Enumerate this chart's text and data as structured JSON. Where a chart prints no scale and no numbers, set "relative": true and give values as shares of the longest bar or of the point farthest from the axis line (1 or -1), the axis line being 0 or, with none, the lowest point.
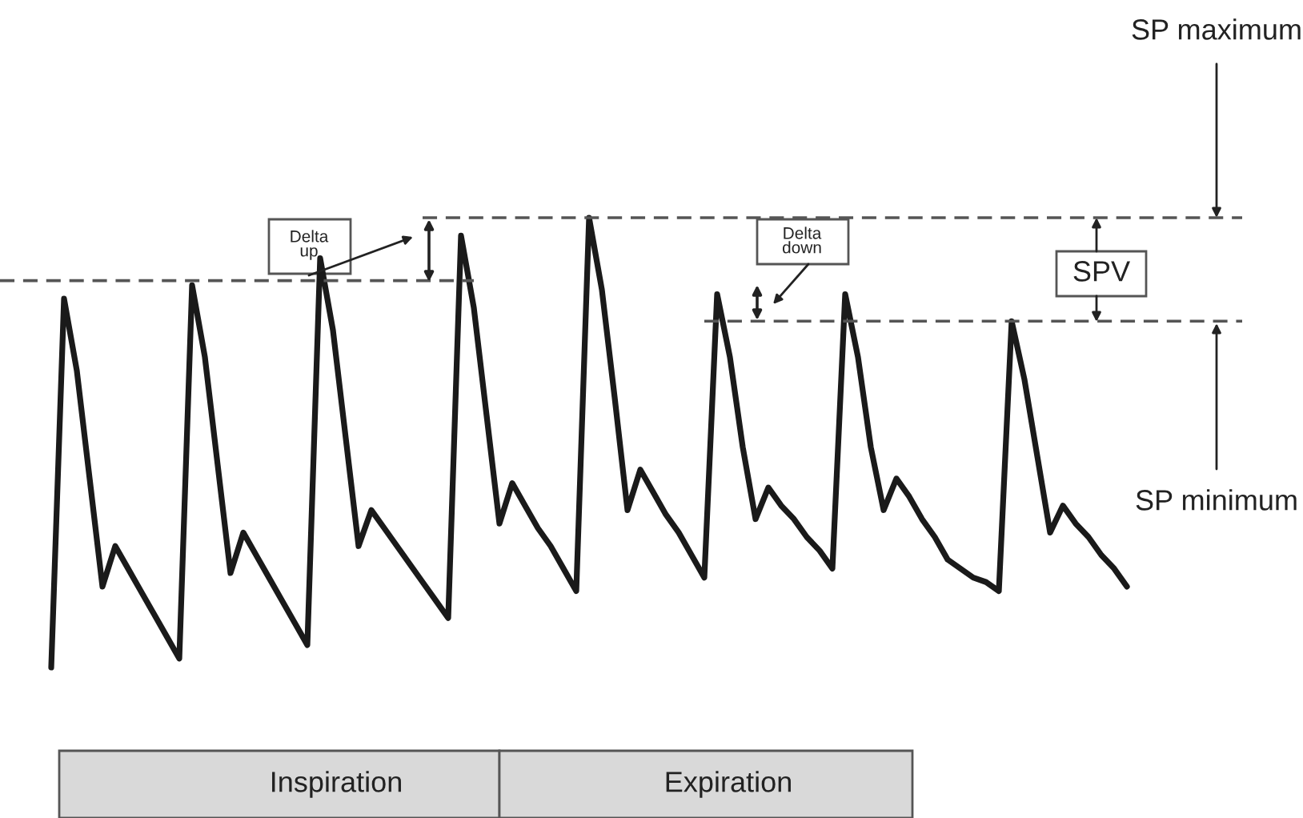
{
  "chart_data": {
    "type": "line",
    "relative": true,
    "categories": [
      null,
      null,
      null,
      null,
      null,
      null,
      null,
      null,
      null,
      null,
      null,
      null,
      null,
      null,
      null,
      null,
      null,
      null,
      null,
      null,
      null,
      null,
      null,
      null,
      null,
      null,
      null,
      null,
      null,
      null,
      null,
      null,
      null,
      null,
      null,
      null,
      null,
      null,
      null,
      null,
      null,
      null,
      null,
      null,
      null,
      null,
      null,
      null,
      null,
      null,
      null,
      null,
      null,
      null,
      null,
      null,
      null,
      null,
      null,
      null,
      null,
      null,
      null,
      null,
      null,
      null,
      null,
      null,
      null,
      null,
      null,
      null,
      null,
      null,
      null,
      null,
      null,
      null,
      null,
      null,
      null,
      null,
      null,
      null,
      null,
      null,
      null,
      null,
      null,
      null,
      null,
      null,
      null,
      null,
      null,
      null,
      null,
      null
    ],
    "series": [
      {
        "color": "#1a1a1a",
        "line_style": "solid",
        "values": [
          null,
          null,
          null,
          null,
          0,
          0.82,
          0.66,
          0.42,
          0.18,
          0.27,
          0.22,
          0.17,
          0.12,
          0.07,
          0.02,
          0.85,
          0.69,
          0.45,
          0.21,
          0.3,
          0.25,
          0.2,
          0.15,
          0.1,
          0.05,
          0.91,
          0.75,
          0.51,
          0.27,
          0.35,
          0.31,
          0.27,
          0.23,
          0.19,
          0.15,
          0.11,
          0.96,
          0.8,
          0.56,
          0.32,
          0.41,
          0.36,
          0.31,
          0.27,
          0.22,
          0.17,
          1.0,
          0.84,
          0.6,
          0.35,
          0.44,
          0.39,
          0.34,
          0.3,
          0.25,
          0.2,
          0.83,
          0.69,
          0.49,
          0.33,
          0.4,
          0.36,
          0.33,
          0.29,
          0.26,
          0.22,
          0.83,
          0.69,
          0.49,
          0.35,
          0.42,
          0.38,
          0.33,
          0.29,
          0.24,
          0.22,
          0.2,
          0.19,
          0.17,
          0.77,
          0.64,
          0.47,
          0.3,
          0.36,
          0.32,
          0.29,
          0.25,
          0.22,
          0.18,
          null,
          null,
          null,
          null,
          null,
          null,
          null,
          null,
          null
        ]
      },
      {
        "color": "#555555",
        "line_style": "dashed",
        "values": [
          0.86,
          0.86,
          0.86,
          0.86,
          0.86,
          0.86,
          0.86,
          0.86,
          0.86,
          0.86,
          0.86,
          0.86,
          0.86,
          0.86,
          0.86,
          0.86,
          0.86,
          0.86,
          0.86,
          0.86,
          0.86,
          0.86,
          0.86,
          0.86,
          0.86,
          0.86,
          0.86,
          0.86,
          0.86,
          0.86,
          0.86,
          0.86,
          0.86,
          0.86,
          0.86,
          0.86,
          0.86,
          0.86,
          null,
          null,
          null,
          null,
          null,
          null,
          null,
          null,
          null,
          null,
          null,
          null,
          null,
          null,
          null,
          null,
          null,
          null,
          null,
          null,
          null,
          null,
          null,
          null,
          null,
          null,
          null,
          null,
          null,
          null,
          null,
          null,
          null,
          null,
          null,
          null,
          null,
          null,
          null,
          null,
          null,
          null,
          null,
          null,
          null,
          null,
          null,
          null,
          null,
          null,
          null,
          null,
          null,
          null,
          null,
          null,
          null,
          null,
          null,
          null
        ]
      },
      {
        "color": "#555555",
        "line_style": "dashed",
        "values": [
          null,
          null,
          null,
          null,
          null,
          null,
          null,
          null,
          null,
          null,
          null,
          null,
          null,
          null,
          null,
          null,
          null,
          null,
          null,
          null,
          null,
          null,
          null,
          null,
          null,
          null,
          null,
          null,
          null,
          null,
          null,
          null,
          null,
          1.0,
          1.0,
          1.0,
          1.0,
          1.0,
          1.0,
          1.0,
          1.0,
          1.0,
          1.0,
          1.0,
          1.0,
          1.0,
          1.0,
          1.0,
          1.0,
          1.0,
          1.0,
          1.0,
          1.0,
          1.0,
          1.0,
          1.0,
          1.0,
          1.0,
          1.0,
          1.0,
          1.0,
          1.0,
          1.0,
          1.0,
          1.0,
          1.0,
          1.0,
          1.0,
          1.0,
          1.0,
          1.0,
          1.0,
          1.0,
          1.0,
          1.0,
          1.0,
          1.0,
          1.0,
          1.0,
          1.0,
          1.0,
          1.0,
          1.0,
          1.0,
          1.0,
          1.0,
          1.0,
          1.0,
          1.0,
          1.0,
          1.0,
          1.0,
          1.0,
          1.0,
          1.0,
          1.0,
          1.0,
          1.0
        ]
      },
      {
        "color": "#555555",
        "line_style": "dashed",
        "values": [
          null,
          null,
          null,
          null,
          null,
          null,
          null,
          null,
          null,
          null,
          null,
          null,
          null,
          null,
          null,
          null,
          null,
          null,
          null,
          null,
          null,
          null,
          null,
          null,
          null,
          null,
          null,
          null,
          null,
          null,
          null,
          null,
          null,
          null,
          null,
          null,
          null,
          null,
          null,
          null,
          null,
          null,
          null,
          null,
          null,
          null,
          null,
          null,
          null,
          null,
          null,
          null,
          null,
          null,
          null,
          0.77,
          0.77,
          0.77,
          0.77,
          0.77,
          0.77,
          0.77,
          0.77,
          0.77,
          0.77,
          0.77,
          0.77,
          0.77,
          0.77,
          0.77,
          0.77,
          0.77,
          0.77,
          0.77,
          0.77,
          0.77,
          0.77,
          0.77,
          0.77,
          0.77,
          0.77,
          0.77,
          0.77,
          0.77,
          0.77,
          0.77,
          0.77,
          0.77,
          0.77,
          0.77,
          0.77,
          0.77,
          0.77,
          0.77,
          0.77,
          0.77,
          0.77,
          0.77
        ]
      }
    ],
    "annotations": [
      "Delta up",
      "Delta down",
      "SPV",
      "SP maximum",
      "SP minimum",
      "Inspiration",
      "Expiration"
    ]
  }
}
